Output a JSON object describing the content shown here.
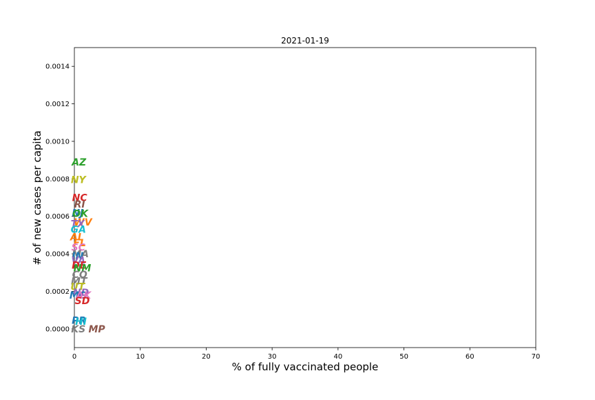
{
  "chart_data": {
    "type": "scatter",
    "title": "2021-01-19",
    "xlabel": "% of fully vaccinated people",
    "ylabel": "# of new cases per capita",
    "xlim": [
      0,
      70
    ],
    "ylim": [
      -0.0001,
      0.0015
    ],
    "xticks": [
      "0",
      "10",
      "20",
      "30",
      "40",
      "50",
      "60",
      "70"
    ],
    "xtick_values": [
      0,
      10,
      20,
      30,
      40,
      50,
      60,
      70
    ],
    "yticks": [
      "0.0000",
      "0.0002",
      "0.0004",
      "0.0006",
      "0.0008",
      "0.0010",
      "0.0012",
      "0.0014"
    ],
    "ytick_values": [
      0,
      0.0002,
      0.0004,
      0.0006,
      0.0008,
      0.001,
      0.0012,
      0.0014
    ],
    "grid": false,
    "points": [
      {
        "label": "AZ",
        "x": 0.7,
        "y": 0.00089,
        "color": "#2ca02c"
      },
      {
        "label": "NY",
        "x": 0.6,
        "y": 0.000795,
        "color": "#bcbd22"
      },
      {
        "label": "NC",
        "x": 0.8,
        "y": 0.0007,
        "color": "#d62728"
      },
      {
        "label": "RI",
        "x": 0.8,
        "y": 0.000665,
        "color": "#8c564b"
      },
      {
        "label": "NJ",
        "x": 0.5,
        "y": 0.00062,
        "color": "#1f77b4"
      },
      {
        "label": "OK",
        "x": 0.9,
        "y": 0.000615,
        "color": "#2ca02c"
      },
      {
        "label": "WV",
        "x": 1.3,
        "y": 0.00057,
        "color": "#ff7f0e"
      },
      {
        "label": "TX",
        "x": 0.5,
        "y": 0.00056,
        "color": "#9467bd"
      },
      {
        "label": "GA",
        "x": 0.6,
        "y": 0.00053,
        "color": "#17becf"
      },
      {
        "label": "AL",
        "x": 0.4,
        "y": 0.00049,
        "color": "#ff7f0e"
      },
      {
        "label": "FL",
        "x": 0.8,
        "y": 0.00046,
        "color": "#ff7f0e"
      },
      {
        "label": "SC",
        "x": 0.6,
        "y": 0.000435,
        "color": "#e377c2"
      },
      {
        "label": "MA",
        "x": 0.9,
        "y": 0.0004,
        "color": "#7f7f7f"
      },
      {
        "label": "IN",
        "x": 0.5,
        "y": 0.00039,
        "color": "#1f77b4"
      },
      {
        "label": "VA",
        "x": 0.6,
        "y": 0.000365,
        "color": "#9467bd"
      },
      {
        "label": "DE",
        "x": 0.7,
        "y": 0.00034,
        "color": "#d62728"
      },
      {
        "label": "NM",
        "x": 1.2,
        "y": 0.000325,
        "color": "#2ca02c"
      },
      {
        "label": "CO",
        "x": 0.8,
        "y": 0.00029,
        "color": "#7f7f7f"
      },
      {
        "label": "MT",
        "x": 0.7,
        "y": 0.000255,
        "color": "#7f7f7f"
      },
      {
        "label": "UT",
        "x": 0.5,
        "y": 0.000225,
        "color": "#bcbd22"
      },
      {
        "label": "ND",
        "x": 1.0,
        "y": 0.000195,
        "color": "#9467bd"
      },
      {
        "label": "MO",
        "x": 0.6,
        "y": 0.00018,
        "color": "#1f77b4"
      },
      {
        "label": "AK",
        "x": 1.4,
        "y": 0.00018,
        "color": "#e377c2"
      },
      {
        "label": "SD",
        "x": 1.2,
        "y": 0.00015,
        "color": "#d62728"
      },
      {
        "label": "PR",
        "x": 0.7,
        "y": 4.5e-05,
        "color": "#1f77b4"
      },
      {
        "label": "HI",
        "x": 1.0,
        "y": 4e-05,
        "color": "#17becf"
      },
      {
        "label": "KS",
        "x": 0.6,
        "y": 0.0,
        "color": "#7f7f7f"
      },
      {
        "label": "MP",
        "x": 3.4,
        "y": 0.0,
        "color": "#8c564b"
      }
    ]
  }
}
